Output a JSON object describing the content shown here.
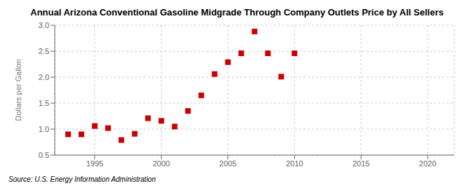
{
  "chart_data": {
    "type": "scatter",
    "title": "Annual Arizona Conventional Gasoline Midgrade Through Company Outlets Price by All Sellers",
    "y_label": "Dollars per Gallon",
    "annotations": [
      "Source: U.S. Energy Information Administration"
    ],
    "x": [
      1993,
      1994,
      1995,
      1996,
      1997,
      1998,
      1999,
      2000,
      2001,
      2002,
      2003,
      2004,
      2005,
      2006,
      2007,
      2008,
      2009,
      2010
    ],
    "values": [
      0.9,
      0.9,
      1.06,
      1.02,
      0.79,
      0.91,
      1.21,
      1.16,
      1.05,
      1.35,
      1.65,
      2.06,
      2.29,
      2.46,
      2.88,
      2.46,
      2.01,
      2.46
    ],
    "color": "#cc0000",
    "marker": "square",
    "xlim": [
      1992,
      2022
    ],
    "ylim": [
      0.5,
      3.0
    ],
    "xticks": [
      1995,
      2000,
      2005,
      2010,
      2015,
      2020
    ],
    "yticks": [
      0.5,
      {
        "value": 1,
        "label": "1.0"
      },
      1.5,
      {
        "value": 2,
        "label": "2.0"
      },
      2.5,
      {
        "value": 3,
        "label": "3.0"
      }
    ],
    "grid": true
  }
}
